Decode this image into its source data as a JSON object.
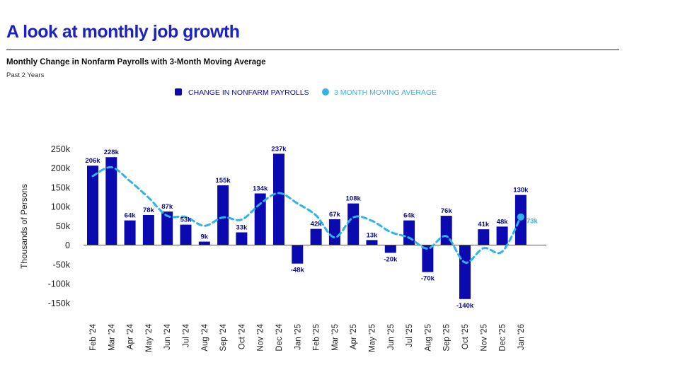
{
  "header": {
    "title": "A look at monthly job growth",
    "subtitle": "Monthly Change in Nonfarm Payrolls with 3-Month Moving Average",
    "period": "Past 2 Years"
  },
  "colors": {
    "bar": "#0a0ab0",
    "line": "#2fb4ea",
    "title": "#1a22c2"
  },
  "chart_data": {
    "type": "bar",
    "ylabel": "Thousands of Persons",
    "ylim": [
      -150,
      250
    ],
    "yticks": [
      250,
      200,
      150,
      100,
      50,
      0,
      -50,
      -100,
      -150
    ],
    "ytick_labels": [
      "250k",
      "200k",
      "150k",
      "100k",
      "50k",
      "0",
      "-50k",
      "-100k",
      "-150k"
    ],
    "categories": [
      "Feb '24",
      "Mar '24",
      "Apr '24",
      "May '24",
      "Jun '24",
      "Jul '24",
      "Aug '24",
      "Sep '24",
      "Oct '24",
      "Nov '24",
      "Dec '24",
      "Jan '25",
      "Feb '25",
      "Mar '25",
      "Apr '25",
      "May '25",
      "Jun '25",
      "Jul '25",
      "Aug '25",
      "Sep '25",
      "Oct '25",
      "Nov '25",
      "Dec '25",
      "Jan '26"
    ],
    "series": [
      {
        "name": "CHANGE IN NONFARM PAYROLLS",
        "kind": "bar",
        "values": [
          206,
          228,
          64,
          78,
          87,
          53,
          9,
          155,
          33,
          134,
          237,
          -48,
          42,
          67,
          108,
          13,
          -20,
          64,
          -70,
          76,
          -140,
          41,
          48,
          130
        ],
        "labels": [
          "206k",
          "228k",
          "64k",
          "78k",
          "87k",
          "53k",
          "9k",
          "155k",
          "33k",
          "134k",
          "237k",
          "-48k",
          "42k",
          "67k",
          "108k",
          "13k",
          "-20k",
          "64k",
          "-70k",
          "76k",
          "-140k",
          "41k",
          "48k",
          "130k"
        ]
      },
      {
        "name": "3 MONTH MOVING AVERAGE",
        "kind": "line",
        "values": [
          179,
          202,
          166,
          123,
          76,
          73,
          50,
          72,
          66,
          107,
          135,
          108,
          77,
          20,
          72,
          63,
          34,
          19,
          -9,
          23,
          -45,
          -8,
          -17,
          73
        ],
        "last_label": "73k"
      }
    ]
  }
}
